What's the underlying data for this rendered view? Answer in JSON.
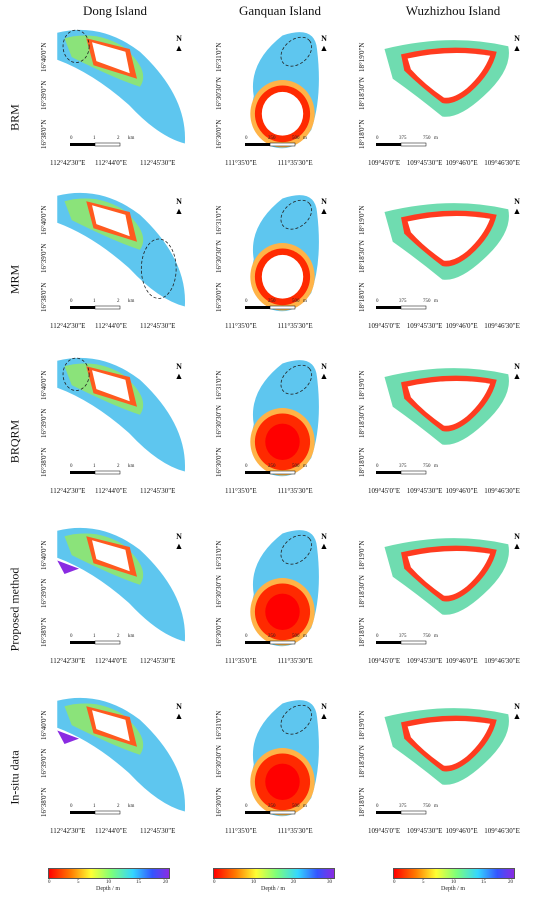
{
  "columns": [
    {
      "title": "Dong Island"
    },
    {
      "title": "Ganquan Island"
    },
    {
      "title": "Wuzhizhou Island"
    }
  ],
  "rows": [
    {
      "label": "BRM"
    },
    {
      "label": "MRM"
    },
    {
      "label": "BRQRM"
    },
    {
      "label": "Proposed method"
    },
    {
      "label": "In-situ data"
    }
  ],
  "dong": {
    "lon_ticks": [
      "112°42'30\"E",
      "112°44'0\"E",
      "112°45'30\"E"
    ],
    "lat_ticks": [
      "16°40'0\"N",
      "16°39'0\"N",
      "16°38'0\"N"
    ],
    "scale": [
      "0",
      "1",
      "2",
      "km"
    ]
  },
  "ganquan": {
    "lon_ticks": [
      "111°35'0\"E",
      "111°35'30\"E"
    ],
    "lat_ticks": [
      "16°31'0\"N",
      "16°30'30\"N",
      "16°30'0\"N"
    ],
    "scale": [
      "0",
      "250",
      "500",
      "m"
    ]
  },
  "wuzhizhou": {
    "lon_ticks": [
      "109°45'0\"E",
      "109°45'30\"E",
      "109°46'0\"E",
      "109°46'30\"E"
    ],
    "lat_ticks": [
      "18°19'0\"N",
      "18°18'30\"N",
      "18°18'0\"N"
    ],
    "scale": [
      "0",
      "375",
      "750",
      "m"
    ]
  },
  "north_label": "N",
  "legend": {
    "title": "Depth / m",
    "dong_ticks": [
      "0",
      "5",
      "10",
      "15",
      "20"
    ],
    "ganquan_ticks": [
      "0",
      "10",
      "20",
      "30"
    ],
    "wuzhizhou_ticks": [
      "0",
      "5",
      "10",
      "15",
      "20"
    ]
  },
  "depth_colors": [
    "#ff0000",
    "#ff7a00",
    "#ffff33",
    "#7dff7a",
    "#33d6ff",
    "#3355ff",
    "#8a2be2"
  ]
}
